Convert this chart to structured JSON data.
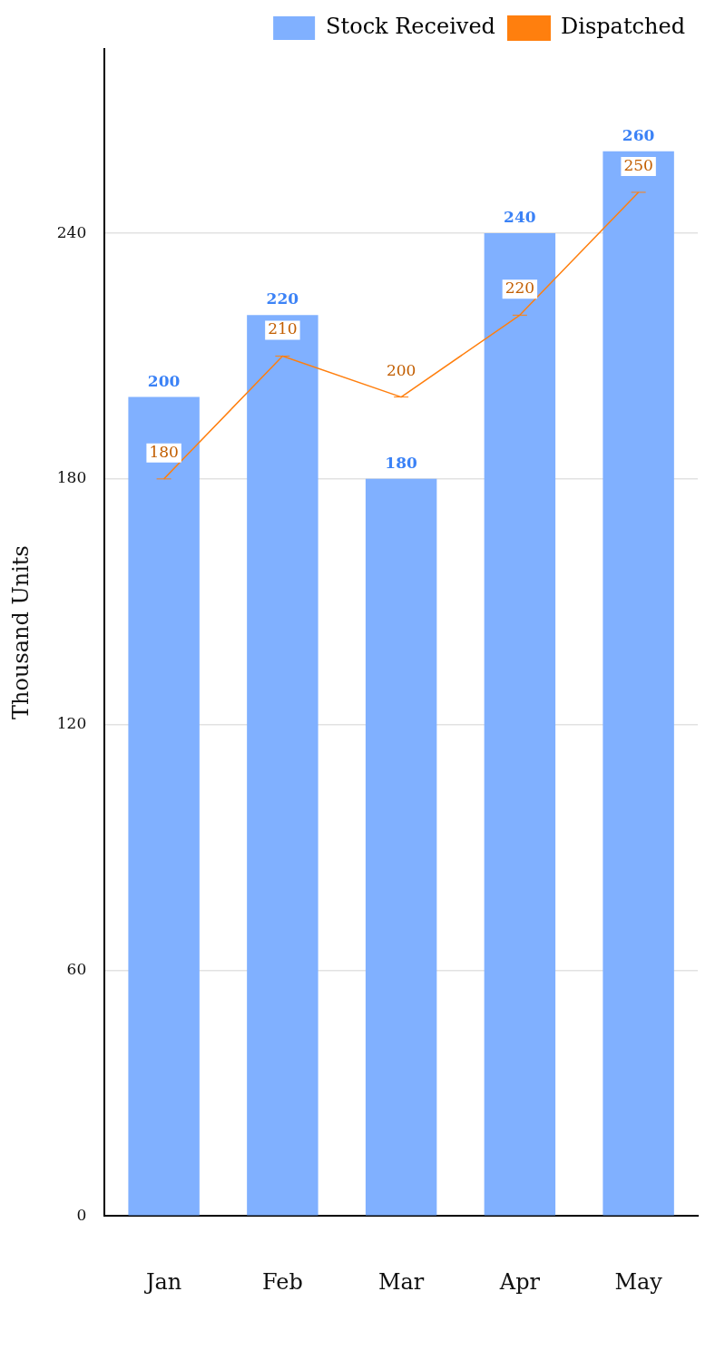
{
  "chart_data": {
    "type": "bar",
    "ylabel": "Thousand Units",
    "categories": [
      "Jan",
      "Feb",
      "Mar",
      "Apr",
      "May"
    ],
    "series": [
      {
        "name": "Stock Received",
        "color": "#80b0ff",
        "values": [
          200,
          220,
          180,
          240,
          260
        ]
      },
      {
        "name": "Dispatched",
        "type": "line",
        "color": "#ff7f0e",
        "values": [
          180,
          210,
          200,
          220,
          250
        ]
      }
    ],
    "ylim": [
      0,
      285
    ],
    "yticks": [
      0,
      60,
      120,
      180,
      240
    ],
    "grid": "y",
    "legend": "top right",
    "data_labels": true
  }
}
